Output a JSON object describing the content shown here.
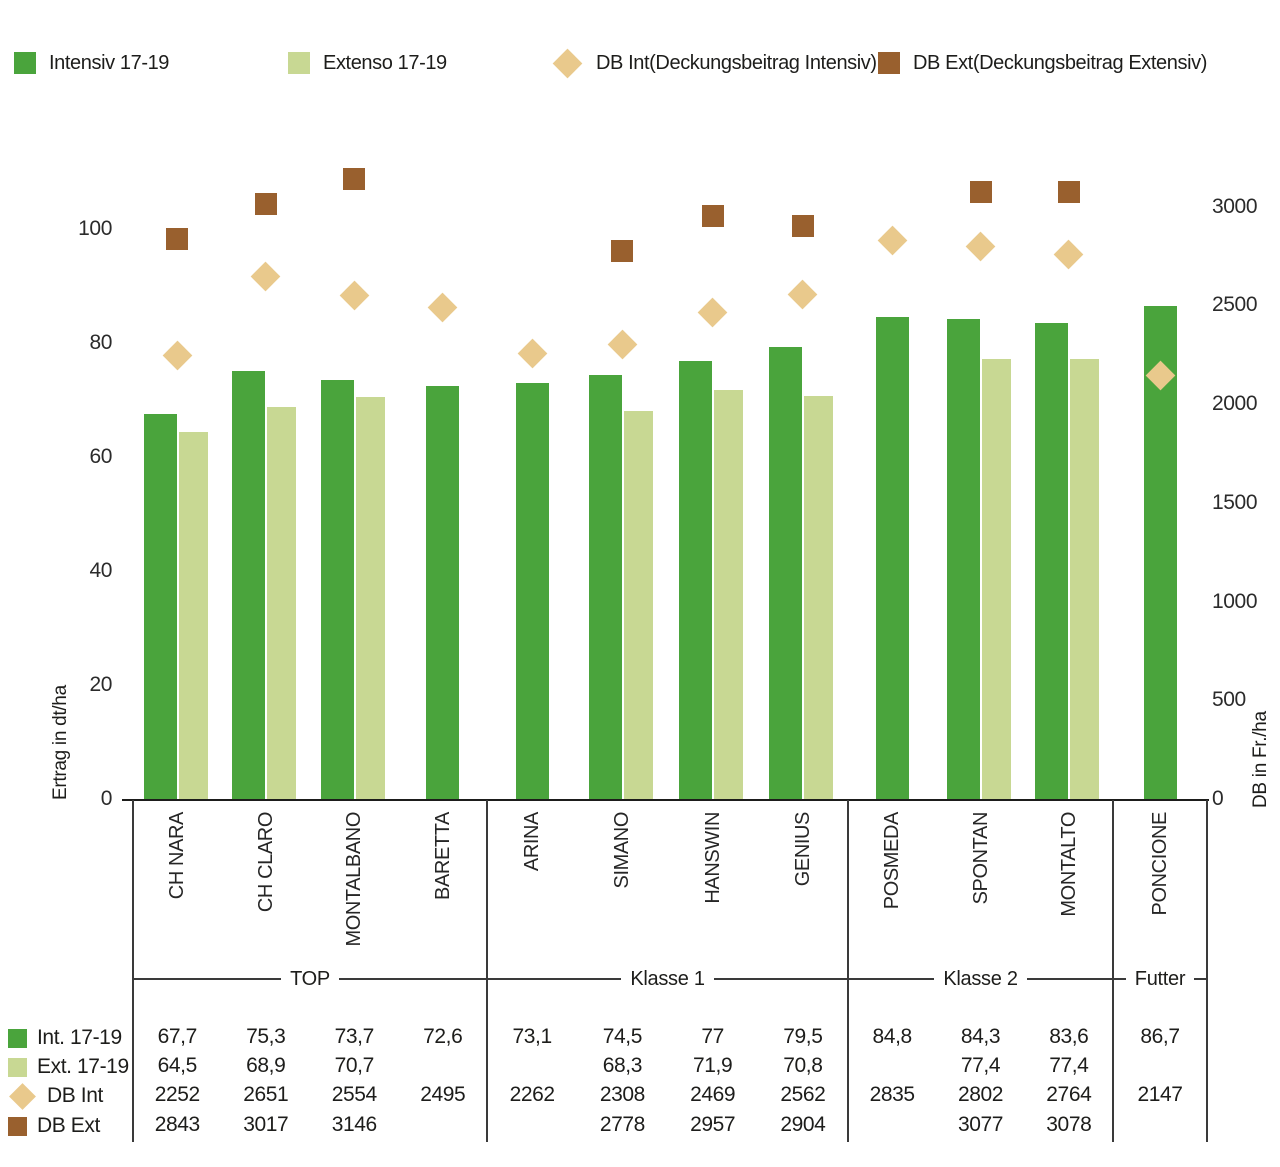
{
  "colors": {
    "intensiv": "#4aa43c",
    "extenso": "#c8d893",
    "db_int": "#e9c98c",
    "db_ext": "#99602e",
    "text": "#1d1d1b",
    "line": "#3a3a3a"
  },
  "legend": {
    "items": [
      {
        "label": "Intensiv 17-19",
        "marker": "square-intensiv"
      },
      {
        "label": "Extenso 17-19",
        "marker": "square-extenso"
      },
      {
        "label": "DB Int(Deckungsbeitrag Intensiv)",
        "marker": "diamond-db-int"
      },
      {
        "label": "DB Ext(Deckungsbeitrag Extensiv)",
        "marker": "square-db-ext"
      }
    ]
  },
  "chart_data": {
    "type": "bar",
    "subtype": "grouped-bars-with-scatter-overlay-dual-axis",
    "grid": false,
    "legend_position": "top",
    "categories": [
      "CH NARA",
      "CH CLARO",
      "MONTALBANO",
      "BARETTA",
      "ARINA",
      "SIMANO",
      "HANSWIN",
      "GENIUS",
      "POSMEDA",
      "SPONTAN",
      "MONTALTO",
      "PONCIONE"
    ],
    "category_groups": [
      {
        "label": "TOP",
        "count": 4
      },
      {
        "label": "Klasse 1",
        "count": 4
      },
      {
        "label": "Klasse 2",
        "count": 3
      },
      {
        "label": "Futter",
        "count": 1
      }
    ],
    "left_axis": {
      "label": "Ertrag in dt/ha",
      "ticks": [
        0,
        20,
        40,
        60,
        80,
        100
      ],
      "range": [
        0,
        116
      ]
    },
    "right_axis": {
      "label": "DB in Fr./ha",
      "ticks": [
        0,
        500,
        1000,
        1500,
        2000,
        2500,
        3000
      ],
      "range": [
        0,
        3350
      ]
    },
    "series": [
      {
        "name": "Intensiv 17-19",
        "type": "bar",
        "axis": "left",
        "color_key": "intensiv",
        "values": [
          67.7,
          75.3,
          73.7,
          72.6,
          73.1,
          74.5,
          77,
          79.5,
          84.8,
          84.3,
          83.6,
          86.7
        ]
      },
      {
        "name": "Extenso 17-19",
        "type": "bar",
        "axis": "left",
        "color_key": "extenso",
        "values": [
          64.5,
          68.9,
          70.7,
          null,
          null,
          68.3,
          71.9,
          70.8,
          null,
          77.4,
          77.4,
          null
        ]
      },
      {
        "name": "DB Int(Deckungsbeitrag Intensiv)",
        "type": "point-diamond",
        "axis": "right",
        "color_key": "db_int",
        "values": [
          2252,
          2651,
          2554,
          2495,
          2262,
          2308,
          2469,
          2562,
          2835,
          2802,
          2764,
          2147
        ]
      },
      {
        "name": "DB Ext(Deckungsbeitrag Extensiv)",
        "type": "point-square",
        "axis": "right",
        "color_key": "db_ext",
        "values": [
          2843,
          3017,
          3146,
          null,
          null,
          2778,
          2957,
          2904,
          null,
          3077,
          3078,
          null
        ]
      }
    ],
    "table": {
      "rows": [
        {
          "label": "Int. 17-19",
          "marker": "square-intensiv",
          "values": [
            "67,7",
            "75,3",
            "73,7",
            "72,6",
            "73,1",
            "74,5",
            "77",
            "79,5",
            "84,8",
            "84,3",
            "83,6",
            "86,7"
          ]
        },
        {
          "label": "Ext. 17-19",
          "marker": "square-extenso",
          "values": [
            "64,5",
            "68,9",
            "70,7",
            "",
            "",
            "68,3",
            "71,9",
            "70,8",
            "",
            "77,4",
            "77,4",
            ""
          ]
        },
        {
          "label": "DB Int",
          "marker": "diamond-db-int",
          "values": [
            "2252",
            "2651",
            "2554",
            "2495",
            "2262",
            "2308",
            "2469",
            "2562",
            "2835",
            "2802",
            "2764",
            "2147"
          ]
        },
        {
          "label": "DB Ext",
          "marker": "square-db-ext",
          "values": [
            "2843",
            "3017",
            "3146",
            "",
            "",
            "2778",
            "2957",
            "2904",
            "",
            "3077",
            "3078",
            ""
          ]
        }
      ]
    }
  }
}
